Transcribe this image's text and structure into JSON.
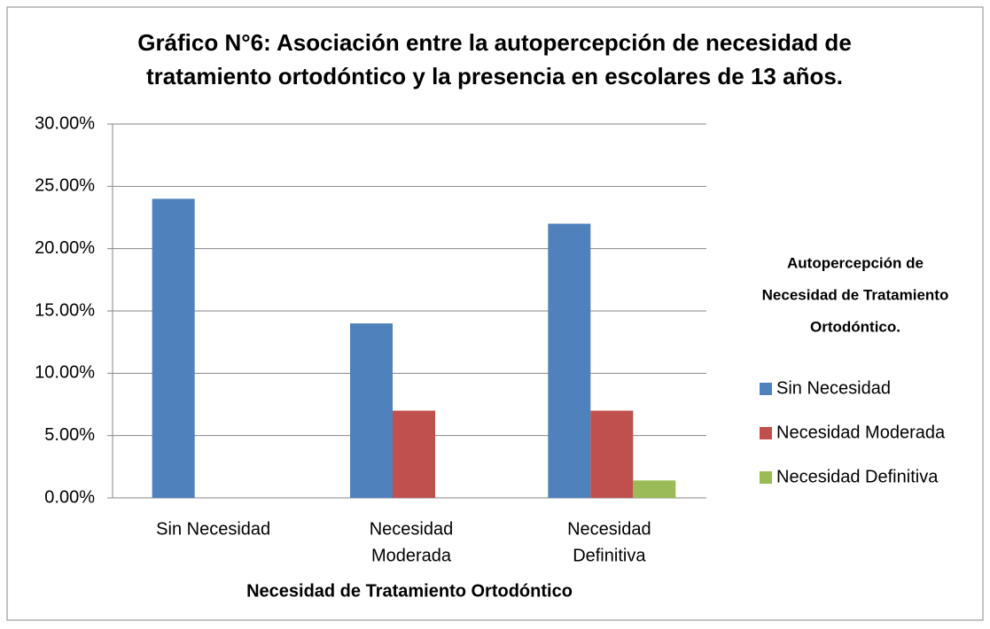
{
  "chart_data": {
    "type": "bar",
    "title": [
      "Gráfico N°6: Asociación entre la autopercepción de necesidad de",
      "tratamiento ortodóntico y la presencia en escolares de 13 años."
    ],
    "x_label": "Necesidad de Tratamiento Ortodóntico",
    "categories": [
      [
        "Sin Necesidad"
      ],
      [
        "Necesidad",
        "Moderada"
      ],
      [
        "Necesidad",
        "Definitiva"
      ]
    ],
    "series": [
      {
        "name": "Sin Necesidad",
        "color": "#4f81bd",
        "values": [
          24,
          14,
          22
        ]
      },
      {
        "name": "Necesidad Moderada",
        "color": "#c0504d",
        "values": [
          0,
          7,
          7
        ]
      },
      {
        "name": "Necesidad Definitiva",
        "color": "#9bbb59",
        "values": [
          0,
          0,
          1.4
        ]
      }
    ],
    "legend_title": [
      "Autopercepción de",
      "Necesidad de Tratamiento",
      "Ortodóntico."
    ],
    "legend": "right",
    "ylim": [
      0,
      30
    ],
    "yticks": [
      {
        "value": 0,
        "label": "0.00%"
      },
      {
        "value": 5,
        "label": "5.00%"
      },
      {
        "value": 10,
        "label": "10.00%"
      },
      {
        "value": 15,
        "label": "15.00%"
      },
      {
        "value": 20,
        "label": "20.00%"
      },
      {
        "value": 25,
        "label": "25.00%"
      },
      {
        "value": 30,
        "label": "30.00%"
      }
    ],
    "grid": true
  }
}
